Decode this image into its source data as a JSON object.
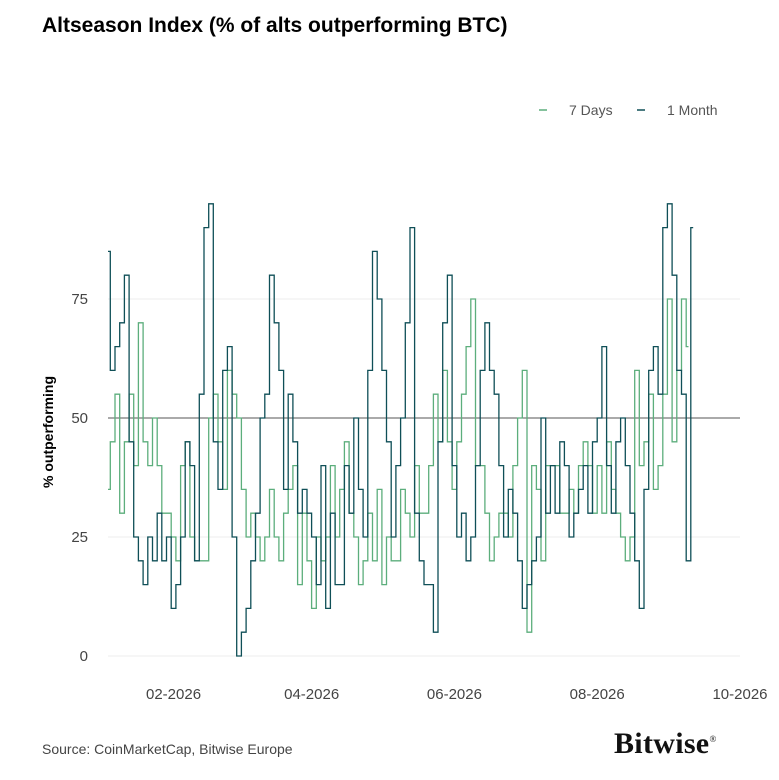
{
  "title": "Altseason Index (% of alts outperforming BTC)",
  "source": "Source: CoinMarketCap, Bitwise Europe",
  "logo_text": "Bitwise",
  "logo_mark": "®",
  "chart_data": {
    "type": "line",
    "title": "Altseason Index (% of alts outperforming BTC)",
    "xlabel": "",
    "ylabel": "% outperforming",
    "xlim": [
      "2026-01-04",
      "2026-10-01"
    ],
    "ylim": [
      0,
      100
    ],
    "x_ticks": [
      "02-2026",
      "04-2026",
      "06-2026",
      "08-2026",
      "10-2026"
    ],
    "y_ticks": [
      0,
      25,
      50,
      75
    ],
    "reference_line": 50,
    "grid": true,
    "legend_position": "top-right",
    "x_start": "2026-01-04",
    "x_step_days": 2,
    "series": [
      {
        "name": "7 Days",
        "color": "#5cae7c",
        "values": [
          35,
          45,
          55,
          30,
          45,
          55,
          40,
          70,
          45,
          40,
          50,
          40,
          30,
          30,
          25,
          20,
          40,
          45,
          25,
          20,
          20,
          20,
          50,
          55,
          45,
          35,
          60,
          55,
          50,
          35,
          25,
          30,
          25,
          20,
          25,
          35,
          25,
          20,
          30,
          35,
          40,
          15,
          30,
          20,
          10,
          25,
          20,
          25,
          40,
          25,
          35,
          45,
          30,
          25,
          15,
          20,
          30,
          20,
          35,
          15,
          25,
          20,
          20,
          35,
          30,
          25,
          40,
          30,
          30,
          40,
          55,
          45,
          60,
          45,
          35,
          45,
          55,
          65,
          75,
          40,
          40,
          30,
          20,
          25,
          30,
          30,
          25,
          40,
          50,
          60,
          5,
          40,
          35,
          20,
          40,
          40,
          40,
          30,
          30,
          35,
          30,
          40,
          45,
          40,
          30,
          40,
          30,
          45,
          35,
          30,
          25,
          20,
          25,
          60,
          40,
          45,
          55,
          35,
          40,
          55,
          75,
          45,
          60,
          75,
          65
        ]
      },
      {
        "name": "1 Month",
        "color": "#0f4f57",
        "values": [
          85,
          60,
          65,
          70,
          80,
          45,
          25,
          20,
          15,
          25,
          20,
          30,
          20,
          25,
          10,
          15,
          25,
          45,
          40,
          20,
          55,
          90,
          95,
          45,
          35,
          60,
          65,
          25,
          0,
          5,
          10,
          20,
          30,
          50,
          55,
          80,
          70,
          60,
          35,
          55,
          45,
          30,
          35,
          30,
          25,
          15,
          40,
          10,
          30,
          15,
          15,
          40,
          30,
          50,
          35,
          25,
          60,
          85,
          75,
          60,
          45,
          25,
          40,
          50,
          70,
          90,
          30,
          20,
          15,
          15,
          5,
          45,
          70,
          80,
          40,
          25,
          30,
          20,
          25,
          40,
          60,
          70,
          60,
          55,
          40,
          25,
          35,
          30,
          20,
          10,
          15,
          20,
          25,
          50,
          30,
          40,
          30,
          45,
          40,
          25,
          30,
          35,
          40,
          30,
          45,
          50,
          65,
          40,
          30,
          45,
          50,
          40,
          30,
          20,
          10,
          35,
          60,
          65,
          55,
          90,
          95,
          80,
          60,
          55,
          20,
          90
        ]
      }
    ]
  }
}
